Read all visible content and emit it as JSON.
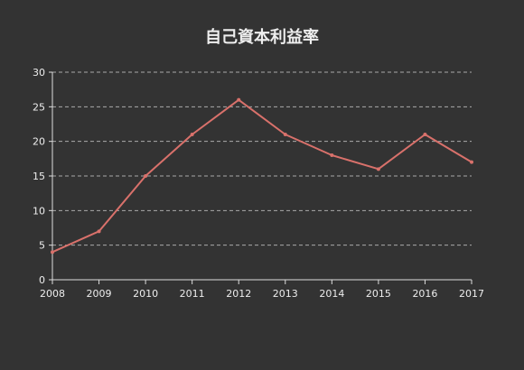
{
  "chart_data": {
    "type": "line",
    "title": "自己資本利益率",
    "xlabel": "",
    "ylabel": "",
    "x": [
      "2008",
      "2009",
      "2010",
      "2011",
      "2012",
      "2013",
      "2014",
      "2015",
      "2016",
      "2017"
    ],
    "series": [
      {
        "values": [
          4,
          7,
          15,
          21,
          26,
          21,
          18,
          16,
          21,
          17
        ],
        "color": "#d9716b"
      }
    ],
    "ylim": [
      0,
      30
    ],
    "yticks": [
      "0",
      "5",
      "10",
      "15",
      "20",
      "25",
      "30"
    ],
    "grid": true,
    "legend": "none",
    "background": "#333333"
  }
}
